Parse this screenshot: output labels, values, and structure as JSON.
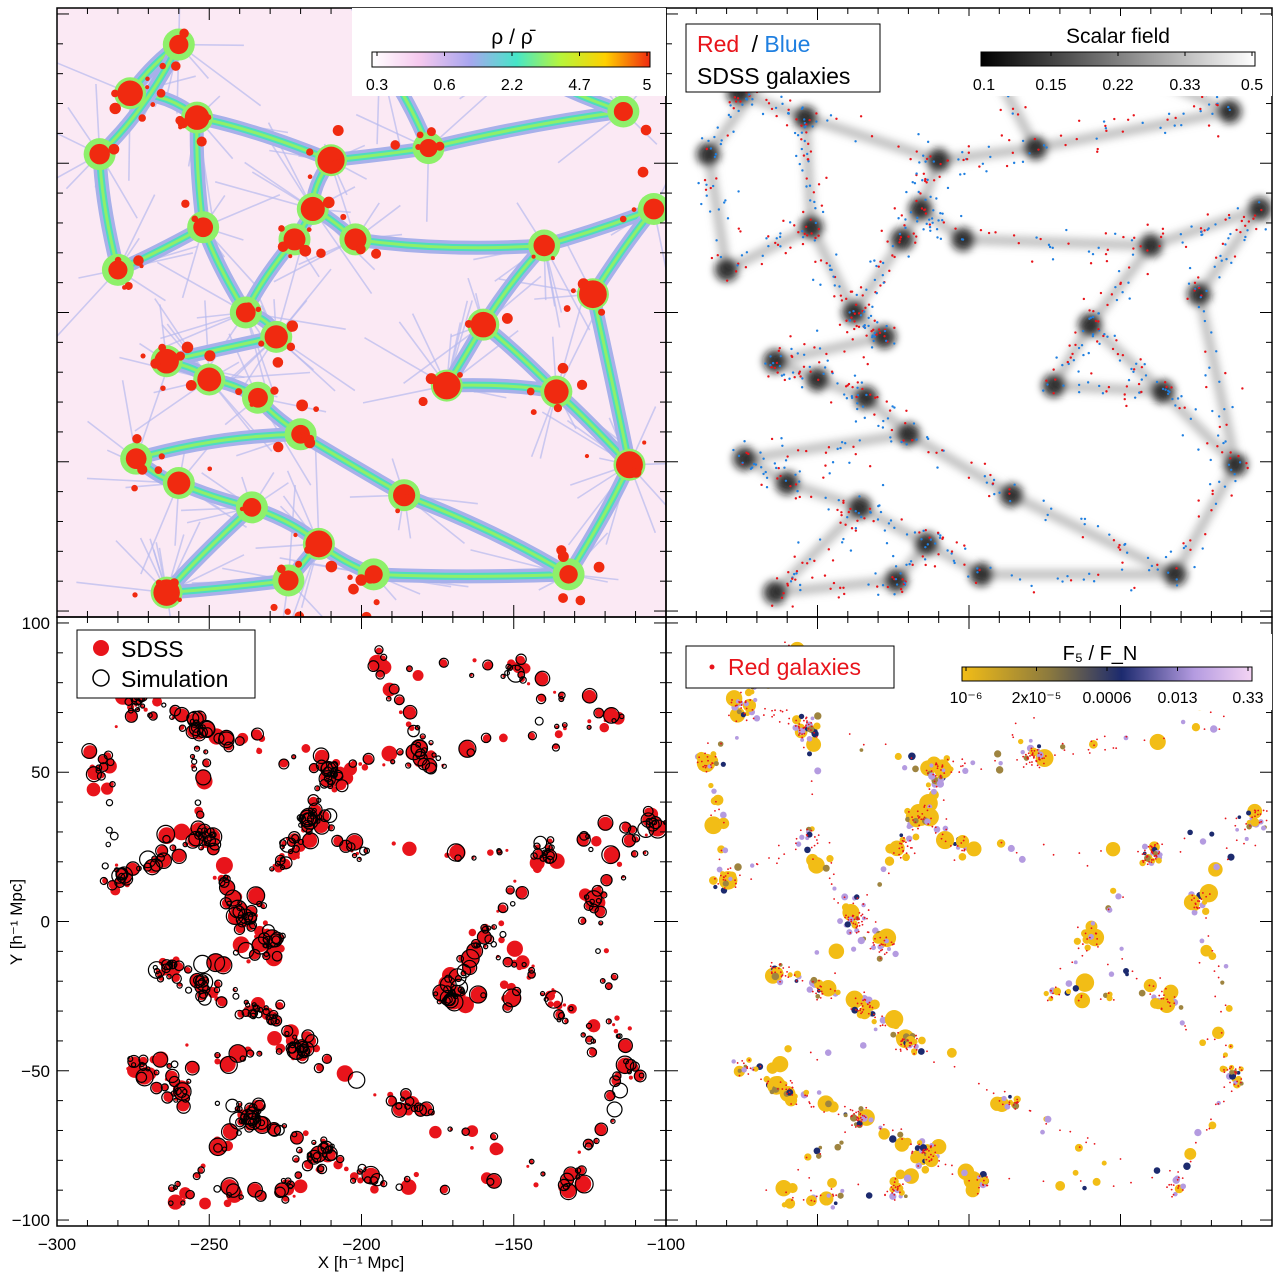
{
  "colors": {
    "red": "#e8141b",
    "blue": "#1f7fe0",
    "gold": "#f2bd16",
    "olive": "#9e8440",
    "navy": "#1c2a6e",
    "lavender": "#b49be0",
    "density_low": "#fbe9f4",
    "density_mid": "#a7b0ea",
    "density_high": "#8ef06a",
    "density_peak": "#f02a10"
  },
  "chart_data": [
    {
      "type": "heatmap",
      "panel": "top-left",
      "colorbar": {
        "label": "ρ / ρ̄",
        "ticks": [
          "0.3",
          "0.6",
          "2.2",
          "4.7",
          "5"
        ],
        "colors": [
          "#ffffff",
          "#f6c9ee",
          "#a9a6ef",
          "#46e6c8",
          "#b8f53a",
          "#ffd000",
          "#f02a10"
        ],
        "placement": "top-right"
      },
      "grid": false
    },
    {
      "type": "heatmap",
      "panel": "top-right",
      "legend": {
        "red_word": "Red",
        "separator": "/",
        "blue_word": "Blue",
        "line2": "SDSS galaxies",
        "placement": "top-left"
      },
      "colorbar": {
        "label": "Scalar field",
        "ticks": [
          "0.1",
          "0.15",
          "0.22",
          "0.33",
          "0.5"
        ],
        "colors": [
          "#000000",
          "#ffffff"
        ],
        "placement": "top-right"
      },
      "series": [
        {
          "color": "#e8141b",
          "marker": "dot"
        },
        {
          "color": "#1f7fe0",
          "marker": "dot"
        }
      ]
    },
    {
      "type": "scatter",
      "panel": "bottom-left",
      "xlabel": "X [h⁻¹ Mpc]",
      "ylabel": "Y [h⁻¹ Mpc]",
      "xlim": [
        -300,
        -100
      ],
      "ylim": [
        -102,
        102
      ],
      "xticks": [
        "−300",
        "−250",
        "−200",
        "−150",
        "−100"
      ],
      "yticks": [
        "−100",
        "−50",
        "0",
        "50",
        "100"
      ],
      "legend": {
        "entries": [
          "SDSS",
          "Simulation"
        ],
        "placement": "top-left"
      },
      "series": [
        {
          "name": "SDSS",
          "marker": "filled-circle",
          "color": "#e8141b"
        },
        {
          "name": "Simulation",
          "marker": "open-circle",
          "color": "#000000"
        }
      ]
    },
    {
      "type": "scatter",
      "panel": "bottom-right",
      "legend": {
        "entries": [
          "Red galaxies"
        ],
        "placement": "top-left"
      },
      "colorbar": {
        "label": "F₅ / F_N",
        "ticks": [
          "10⁻⁶",
          "2x10⁻⁵",
          "0.0006",
          "0.013",
          "0.33"
        ],
        "colors": [
          "#f2bd16",
          "#8c7a3e",
          "#1c2a6e",
          "#b49be0",
          "#f4d4f4"
        ],
        "placement": "top-right"
      },
      "series": [
        {
          "name": "Red galaxies",
          "marker": "dot",
          "color": "#e8141b"
        }
      ]
    }
  ]
}
